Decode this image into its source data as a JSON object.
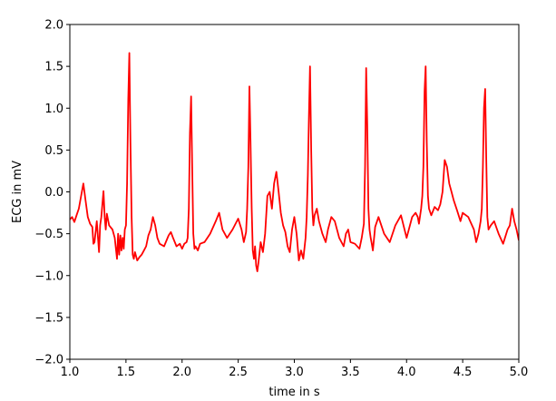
{
  "chart_data": {
    "type": "line",
    "title": "",
    "xlabel": "time in s",
    "ylabel": "ECG in mV",
    "xlim": [
      1.0,
      5.0
    ],
    "ylim": [
      -2.0,
      2.0
    ],
    "xticks": [
      1.0,
      1.5,
      2.0,
      2.5,
      3.0,
      3.5,
      4.0,
      4.5,
      5.0
    ],
    "xtick_labels": [
      "1.0",
      "1.5",
      "2.0",
      "2.5",
      "3.0",
      "3.5",
      "4.0",
      "4.5",
      "5.0"
    ],
    "yticks": [
      -2.0,
      -1.5,
      -1.0,
      -0.5,
      0.0,
      0.5,
      1.0,
      1.5,
      2.0
    ],
    "ytick_labels": [
      "−2.0",
      "−1.5",
      "−1.0",
      "−0.5",
      "0.0",
      "0.5",
      "1.0",
      "1.5",
      "2.0"
    ],
    "grid": false,
    "line_color": "#ff0000",
    "series": [
      {
        "x": [
          1.0,
          1.02,
          1.04,
          1.06,
          1.08,
          1.1,
          1.12,
          1.14,
          1.16,
          1.18,
          1.2,
          1.21,
          1.22,
          1.24,
          1.26,
          1.27,
          1.28,
          1.3,
          1.31,
          1.32,
          1.33,
          1.35,
          1.38,
          1.4,
          1.42,
          1.43,
          1.44,
          1.45,
          1.46,
          1.47,
          1.48,
          1.49,
          1.5,
          1.51,
          1.52,
          1.53,
          1.54,
          1.55,
          1.56,
          1.57,
          1.58,
          1.6,
          1.62,
          1.64,
          1.66,
          1.68,
          1.7,
          1.72,
          1.74,
          1.76,
          1.78,
          1.8,
          1.84,
          1.88,
          1.9,
          1.92,
          1.95,
          1.98,
          2.0,
          2.02,
          2.04,
          2.05,
          2.06,
          2.07,
          2.08,
          2.09,
          2.1,
          2.11,
          2.12,
          2.14,
          2.16,
          2.2,
          2.25,
          2.3,
          2.33,
          2.36,
          2.4,
          2.45,
          2.5,
          2.53,
          2.55,
          2.57,
          2.58,
          2.59,
          2.6,
          2.61,
          2.62,
          2.63,
          2.64,
          2.65,
          2.66,
          2.67,
          2.68,
          2.7,
          2.72,
          2.74,
          2.76,
          2.78,
          2.8,
          2.82,
          2.84,
          2.86,
          2.88,
          2.9,
          2.92,
          2.94,
          2.96,
          2.98,
          3.0,
          3.02,
          3.04,
          3.06,
          3.08,
          3.1,
          3.11,
          3.12,
          3.13,
          3.14,
          3.15,
          3.16,
          3.17,
          3.18,
          3.2,
          3.22,
          3.25,
          3.28,
          3.3,
          3.33,
          3.36,
          3.4,
          3.44,
          3.46,
          3.48,
          3.5,
          3.54,
          3.58,
          3.6,
          3.62,
          3.63,
          3.64,
          3.65,
          3.66,
          3.67,
          3.68,
          3.69,
          3.7,
          3.72,
          3.75,
          3.8,
          3.85,
          3.9,
          3.95,
          4.0,
          4.05,
          4.08,
          4.1,
          4.11,
          4.13,
          4.14,
          4.15,
          4.16,
          4.17,
          4.18,
          4.19,
          4.2,
          4.22,
          4.25,
          4.28,
          4.3,
          4.32,
          4.34,
          4.36,
          4.38,
          4.4,
          4.42,
          4.45,
          4.48,
          4.5,
          4.55,
          4.6,
          4.62,
          4.64,
          4.66,
          4.67,
          4.68,
          4.69,
          4.7,
          4.71,
          4.72,
          4.73,
          4.75,
          4.78,
          4.82,
          4.86,
          4.9,
          4.92,
          4.94,
          4.96,
          4.98,
          5.0
        ],
        "y": [
          -0.33,
          -0.3,
          -0.36,
          -0.28,
          -0.2,
          -0.05,
          0.1,
          -0.1,
          -0.3,
          -0.38,
          -0.42,
          -0.62,
          -0.6,
          -0.35,
          -0.72,
          -0.4,
          -0.3,
          0.01,
          -0.3,
          -0.45,
          -0.26,
          -0.4,
          -0.45,
          -0.55,
          -0.8,
          -0.5,
          -0.75,
          -0.52,
          -0.7,
          -0.55,
          -0.68,
          -0.45,
          -0.4,
          0.1,
          1.1,
          1.66,
          0.6,
          -0.3,
          -0.75,
          -0.8,
          -0.72,
          -0.82,
          -0.78,
          -0.75,
          -0.7,
          -0.65,
          -0.52,
          -0.45,
          -0.3,
          -0.4,
          -0.55,
          -0.62,
          -0.65,
          -0.52,
          -0.48,
          -0.55,
          -0.65,
          -0.62,
          -0.68,
          -0.62,
          -0.6,
          -0.55,
          -0.2,
          0.7,
          1.14,
          0.3,
          -0.5,
          -0.68,
          -0.65,
          -0.7,
          -0.62,
          -0.6,
          -0.5,
          -0.35,
          -0.25,
          -0.45,
          -0.55,
          -0.45,
          -0.32,
          -0.45,
          -0.6,
          -0.48,
          -0.2,
          0.3,
          1.26,
          0.6,
          -0.2,
          -0.7,
          -0.8,
          -0.65,
          -0.88,
          -0.95,
          -0.85,
          -0.6,
          -0.72,
          -0.5,
          -0.05,
          0.0,
          -0.2,
          0.1,
          0.24,
          0.0,
          -0.25,
          -0.4,
          -0.48,
          -0.65,
          -0.72,
          -0.45,
          -0.3,
          -0.5,
          -0.82,
          -0.7,
          -0.8,
          -0.55,
          -0.3,
          0.2,
          0.9,
          1.5,
          0.5,
          -0.2,
          -0.4,
          -0.28,
          -0.2,
          -0.35,
          -0.5,
          -0.6,
          -0.45,
          -0.3,
          -0.35,
          -0.55,
          -0.65,
          -0.5,
          -0.45,
          -0.6,
          -0.62,
          -0.68,
          -0.55,
          -0.38,
          0.3,
          1.48,
          0.8,
          -0.2,
          -0.45,
          -0.55,
          -0.62,
          -0.7,
          -0.42,
          -0.3,
          -0.5,
          -0.6,
          -0.4,
          -0.28,
          -0.55,
          -0.3,
          -0.25,
          -0.3,
          -0.38,
          -0.2,
          -0.05,
          0.3,
          1.2,
          1.5,
          0.6,
          -0.05,
          -0.2,
          -0.28,
          -0.18,
          -0.22,
          -0.15,
          0.0,
          0.38,
          0.3,
          0.1,
          0.0,
          -0.1,
          -0.22,
          -0.35,
          -0.25,
          -0.3,
          -0.45,
          -0.6,
          -0.5,
          -0.35,
          -0.2,
          0.3,
          1.0,
          1.23,
          0.4,
          -0.3,
          -0.45,
          -0.4,
          -0.35,
          -0.5,
          -0.62,
          -0.45,
          -0.4,
          -0.2,
          -0.35,
          -0.45,
          -0.58
        ]
      }
    ]
  }
}
